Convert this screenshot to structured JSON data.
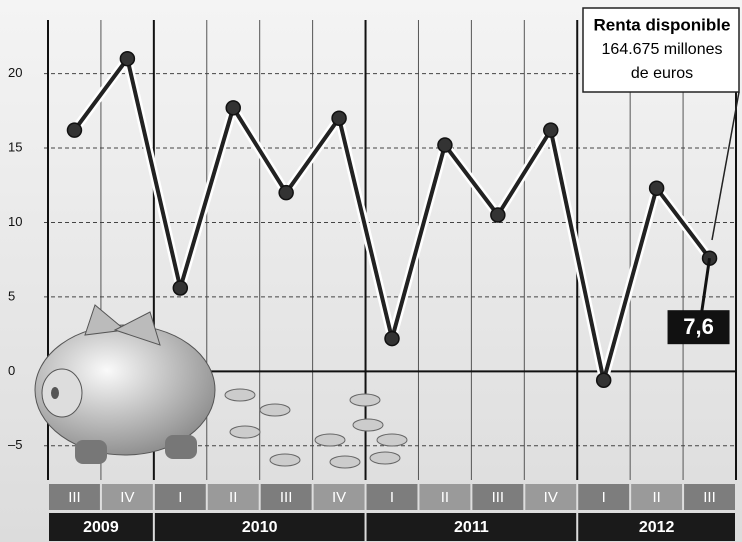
{
  "chart_data": {
    "type": "line",
    "groups": [
      {
        "label": "2009",
        "categories": [
          "III",
          "IV"
        ]
      },
      {
        "label": "2010",
        "categories": [
          "I",
          "II",
          "III",
          "IV"
        ]
      },
      {
        "label": "2011",
        "categories": [
          "I",
          "II",
          "III",
          "IV"
        ]
      },
      {
        "label": "2012",
        "categories": [
          "I",
          "II",
          "III"
        ]
      }
    ],
    "values": [
      16.2,
      21.0,
      5.6,
      17.7,
      12.0,
      17.0,
      2.2,
      15.2,
      10.5,
      16.2,
      -0.6,
      12.3,
      7.6
    ],
    "value_labels": [
      null,
      null,
      null,
      null,
      null,
      null,
      null,
      null,
      null,
      null,
      null,
      null,
      "7,6"
    ],
    "color": "#222222",
    "ylim": [
      -7.3,
      23.6
    ],
    "yticks": [
      {
        "value": -5,
        "label": "–5"
      },
      0,
      5,
      10,
      15,
      20
    ],
    "grid": true,
    "annotation": {
      "title": "Renta disponible",
      "lines": [
        "164.675 millones",
        "de euros"
      ]
    }
  }
}
